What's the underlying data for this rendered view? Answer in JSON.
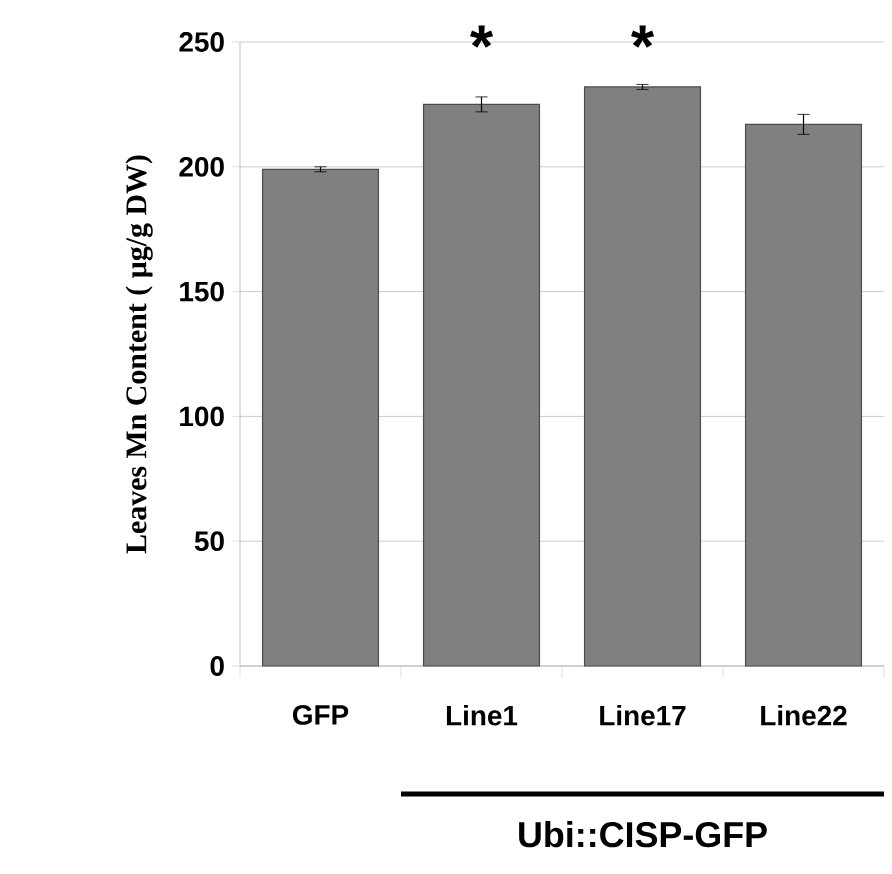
{
  "chart_data": {
    "type": "bar",
    "ylabel": "Leaves Mn Content ( µg/g DW)",
    "categories": [
      "GFP",
      "Line1",
      "Line17",
      "Line22"
    ],
    "values": [
      199,
      225,
      232,
      217
    ],
    "errors": [
      1,
      3,
      1,
      4
    ],
    "color": "#808080",
    "ylim": [
      0,
      250
    ],
    "yticks": [
      0,
      50,
      100,
      150,
      200,
      250
    ],
    "grid": "y",
    "annotations": [
      "*",
      "*",
      "Ubi::CISP-GFP"
    ]
  }
}
